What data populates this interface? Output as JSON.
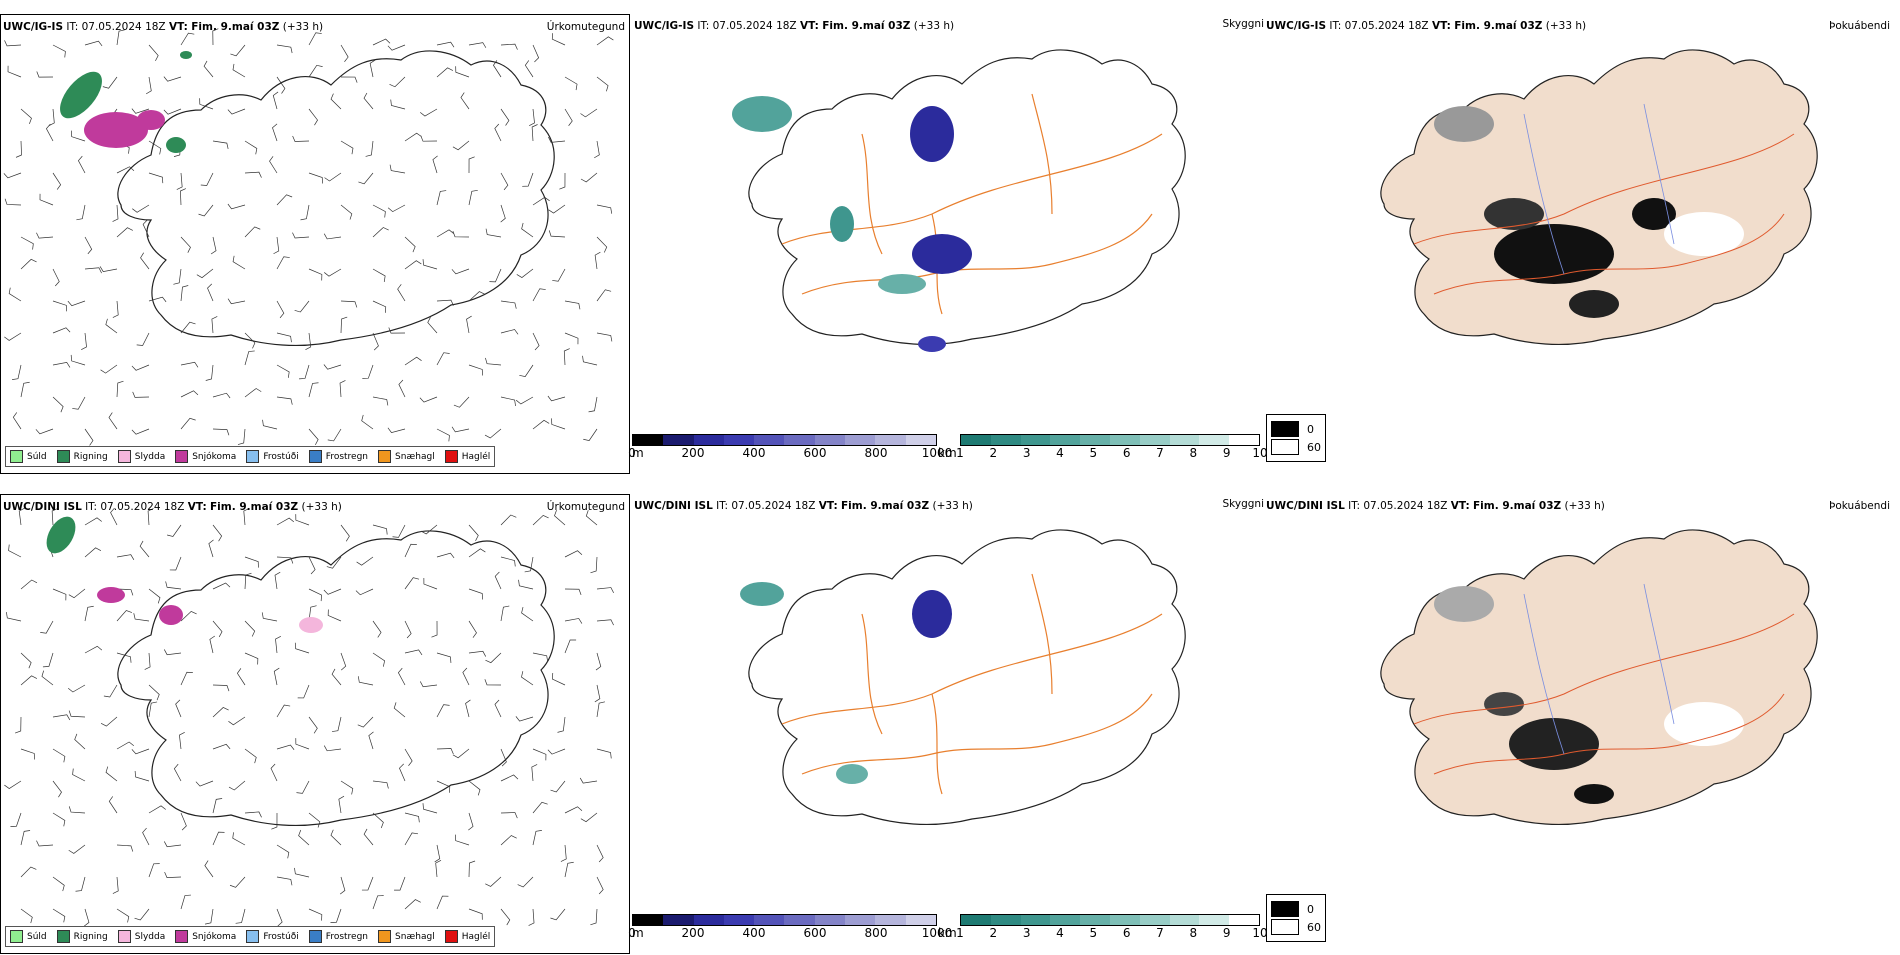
{
  "rows": [
    {
      "model": "UWC/IG-IS",
      "it_label": "IT:",
      "it": "07.05.2024 18Z",
      "vt_label": "VT:",
      "vt": "Fim. 9.maí 03Z",
      "offset": "(+33 h)"
    },
    {
      "model": "UWC/DINI ISL",
      "it_label": "IT:",
      "it": "07.05.2024 18Z",
      "vt_label": "VT:",
      "vt": "Fim. 9.maí 03Z",
      "offset": "(+33 h)"
    }
  ],
  "panel_labels": {
    "precip_type": "Úrkomutegund",
    "visibility": "Skyggni",
    "fog": "Þokuábendi"
  },
  "precip_legend": [
    {
      "label": "Súld",
      "color": "#90ee90"
    },
    {
      "label": "Rigning",
      "color": "#2e8b57"
    },
    {
      "label": "Slydda",
      "color": "#f4b6dc"
    },
    {
      "label": "Snjókoma",
      "color": "#c03a9c"
    },
    {
      "label": "Frostúði",
      "color": "#87bfef"
    },
    {
      "label": "Frostregn",
      "color": "#3a7ec6"
    },
    {
      "label": "Snæhagl",
      "color": "#f0961e"
    },
    {
      "label": "Haglél",
      "color": "#e01010"
    }
  ],
  "height_scale": {
    "unit": "m",
    "ticks": [
      "0",
      "200",
      "400",
      "600",
      "800",
      "1000"
    ],
    "colors": [
      "#000000",
      "#1a1a6e",
      "#2b2b9c",
      "#3b3bb0",
      "#5353b8",
      "#6b6bc0",
      "#8484c8",
      "#9d9dd2",
      "#b5b5dc",
      "#cfcfe8"
    ]
  },
  "visibility_scale": {
    "unit": "km",
    "ticks": [
      "1",
      "2",
      "3",
      "4",
      "5",
      "6",
      "7",
      "8",
      "9",
      "10"
    ],
    "colors": [
      "#1e7a72",
      "#2f8a82",
      "#3f968e",
      "#52a39b",
      "#67b0a8",
      "#7fbfb7",
      "#98cdc6",
      "#b4dcd6",
      "#d2ebe7",
      "#ffffff"
    ]
  },
  "fog_legend": [
    {
      "label": "0",
      "color": "#000000"
    },
    {
      "label": "60",
      "color": "#ffffff"
    }
  ],
  "colors": {
    "land_fog": "#f1ddcc",
    "roads": "#e87f2e",
    "rivers": "#7a8ee0"
  }
}
